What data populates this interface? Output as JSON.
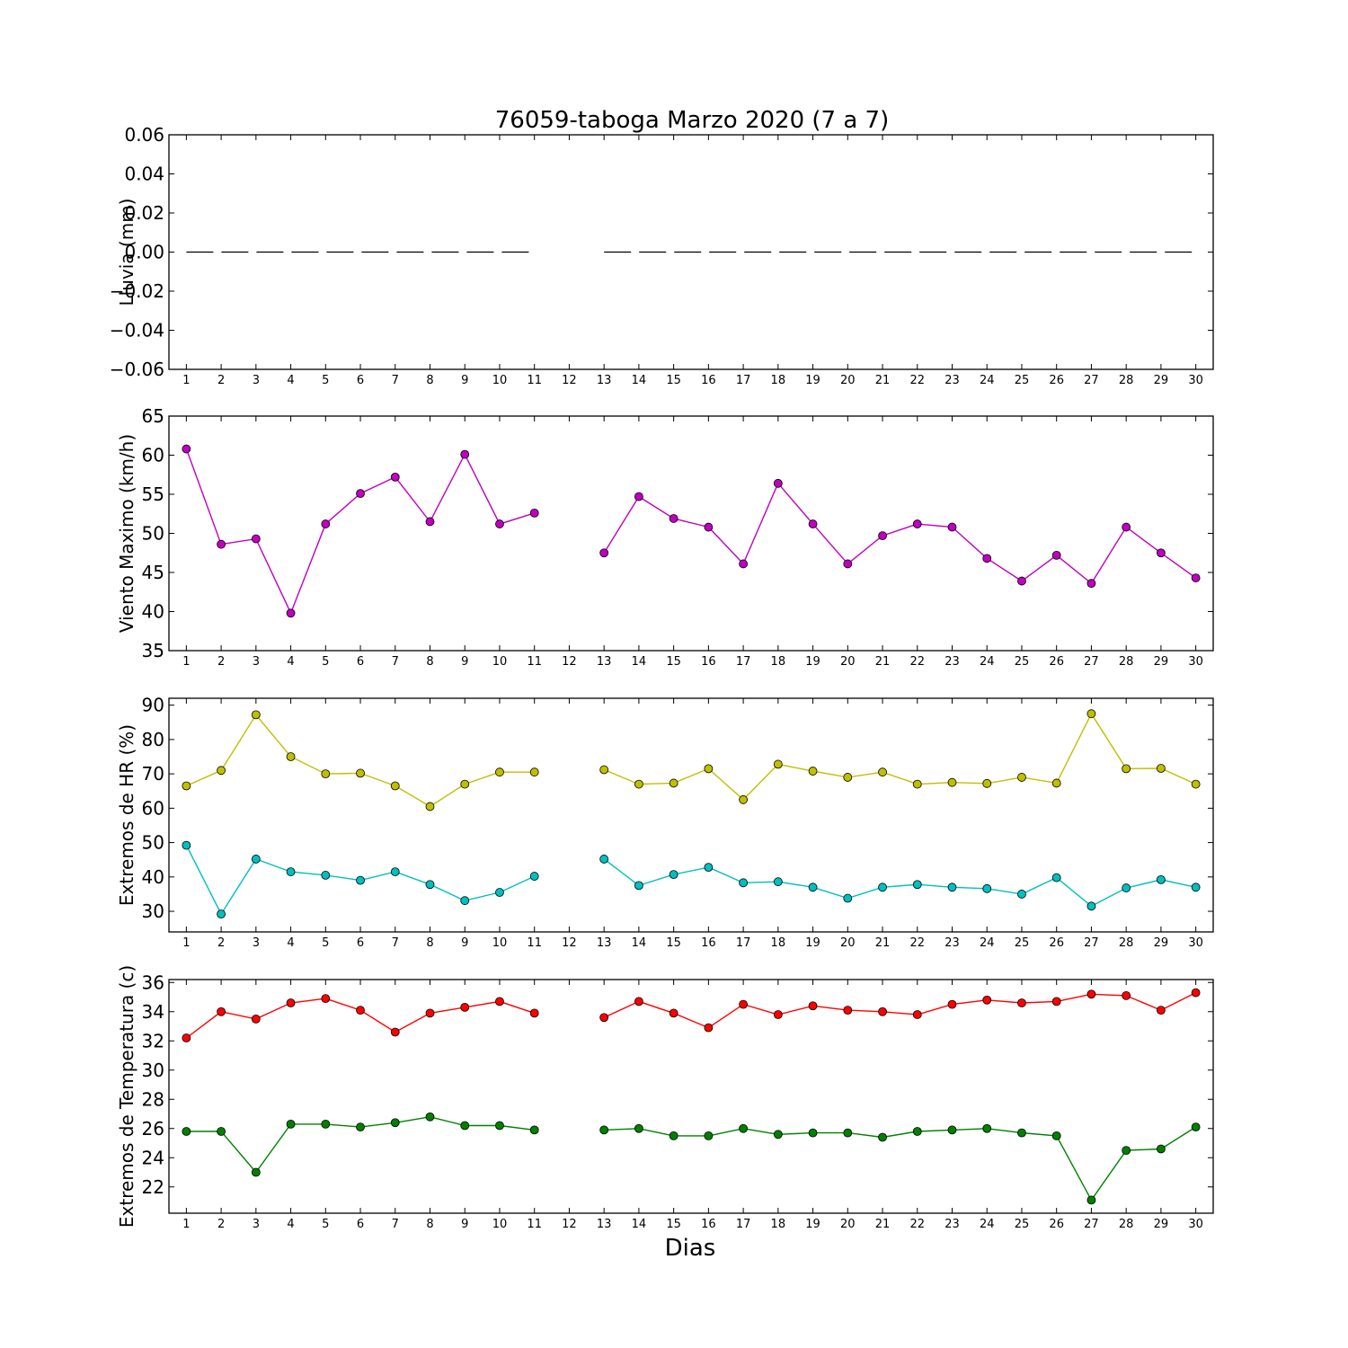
{
  "title": "76059-taboga Marzo 2020  (7 a 7)",
  "xlabel": "Dias",
  "days": [
    "1",
    "2",
    "3",
    "4",
    "5",
    "6",
    "7",
    "8",
    "9",
    "10",
    "11",
    "12",
    "13",
    "14",
    "15",
    "16",
    "17",
    "18",
    "19",
    "20",
    "21",
    "22",
    "23",
    "24",
    "25",
    "26",
    "27",
    "28",
    "29",
    "30"
  ],
  "chart_data": [
    {
      "type": "line",
      "ylabel": "Lluvia (mm)",
      "ylim": [
        -0.06,
        0.06
      ],
      "yticks": [
        "0.06",
        "0.04",
        "0.02",
        "0.00",
        "−0.02",
        "−0.04",
        "−0.06"
      ],
      "ytick_values": [
        0.06,
        0.04,
        0.02,
        0.0,
        -0.02,
        -0.04,
        -0.06
      ],
      "series": [
        {
          "color": "#000000",
          "style": "dashed",
          "marker": "none",
          "values": [
            0,
            0,
            0,
            0,
            0,
            0,
            0,
            0,
            0,
            0,
            0,
            null,
            0,
            0,
            0,
            0,
            0,
            0,
            0,
            0,
            0,
            0,
            0,
            0,
            0,
            0,
            0,
            0,
            0,
            0
          ]
        }
      ]
    },
    {
      "type": "line",
      "ylabel": "Viento Maximo (km/h)",
      "ylim": [
        35,
        65
      ],
      "yticks": [
        "65",
        "60",
        "55",
        "50",
        "45",
        "40",
        "35"
      ],
      "ytick_values": [
        65,
        60,
        55,
        50,
        45,
        40,
        35
      ],
      "series": [
        {
          "color": "#bf00bf",
          "style": "solid",
          "marker": "circle",
          "values": [
            60.8,
            48.6,
            49.3,
            39.8,
            51.2,
            55.1,
            57.2,
            51.5,
            60.1,
            51.2,
            52.6,
            null,
            47.5,
            54.7,
            51.9,
            50.8,
            46.1,
            56.4,
            51.2,
            46.1,
            49.7,
            51.2,
            50.8,
            46.8,
            43.9,
            47.2,
            43.6,
            50.8,
            47.5,
            44.3
          ]
        }
      ]
    },
    {
      "type": "line",
      "ylabel": "Extremos de HR (%)",
      "ylim": [
        24,
        92
      ],
      "yticks": [
        "90",
        "80",
        "70",
        "60",
        "50",
        "40",
        "30"
      ],
      "ytick_values": [
        90,
        80,
        70,
        60,
        50,
        40,
        30
      ],
      "series": [
        {
          "color": "#bfbf00",
          "style": "solid",
          "marker": "circle",
          "values": [
            66.5,
            71.0,
            87.2,
            75.0,
            70.0,
            70.2,
            66.5,
            60.5,
            67.0,
            70.5,
            70.5,
            null,
            71.2,
            67.0,
            67.3,
            71.5,
            62.5,
            72.8,
            70.8,
            69.0,
            70.5,
            67.0,
            67.5,
            67.2,
            69.0,
            67.3,
            87.5,
            71.5,
            71.6,
            67.0
          ]
        },
        {
          "color": "#00bfbf",
          "style": "solid",
          "marker": "circle",
          "values": [
            49.2,
            29.2,
            45.2,
            41.5,
            40.5,
            39.0,
            41.5,
            37.8,
            33.1,
            35.5,
            40.2,
            null,
            45.2,
            37.5,
            40.7,
            42.8,
            38.3,
            38.6,
            37.0,
            33.8,
            37.0,
            37.8,
            37.0,
            36.6,
            35.0,
            39.8,
            31.5,
            36.8,
            39.2,
            37.0
          ]
        }
      ]
    },
    {
      "type": "line",
      "ylabel": "Extremos de Temperatura (c)",
      "ylim": [
        20.2,
        36.2
      ],
      "yticks": [
        "36",
        "34",
        "32",
        "30",
        "28",
        "26",
        "24",
        "22"
      ],
      "ytick_values": [
        36,
        34,
        32,
        30,
        28,
        26,
        24,
        22
      ],
      "series": [
        {
          "color": "#ff0000",
          "style": "solid",
          "marker": "circle",
          "values": [
            32.2,
            34.0,
            33.5,
            34.6,
            34.9,
            34.1,
            32.6,
            33.9,
            34.3,
            34.7,
            33.9,
            null,
            33.6,
            34.7,
            33.9,
            32.9,
            34.5,
            33.8,
            34.4,
            34.1,
            34.0,
            33.8,
            34.5,
            34.8,
            34.6,
            34.7,
            35.2,
            35.1,
            34.1,
            35.3
          ]
        },
        {
          "color": "#008000",
          "style": "solid",
          "marker": "circle",
          "values": [
            25.8,
            25.8,
            23.0,
            26.3,
            26.3,
            26.1,
            26.4,
            26.8,
            26.2,
            26.2,
            25.9,
            null,
            25.9,
            26.0,
            25.5,
            25.5,
            26.0,
            25.6,
            25.7,
            25.7,
            25.4,
            25.8,
            25.9,
            26.0,
            25.7,
            25.5,
            21.1,
            24.5,
            24.6,
            26.1
          ]
        }
      ]
    }
  ]
}
